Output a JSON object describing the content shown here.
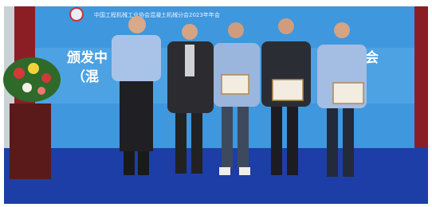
{
  "banner": {
    "top_line": "中国工程机械工业协会混凝土机械分会2023年年会",
    "headline_left": "颁发中",
    "headline_right": "会",
    "subline": "（混"
  }
}
